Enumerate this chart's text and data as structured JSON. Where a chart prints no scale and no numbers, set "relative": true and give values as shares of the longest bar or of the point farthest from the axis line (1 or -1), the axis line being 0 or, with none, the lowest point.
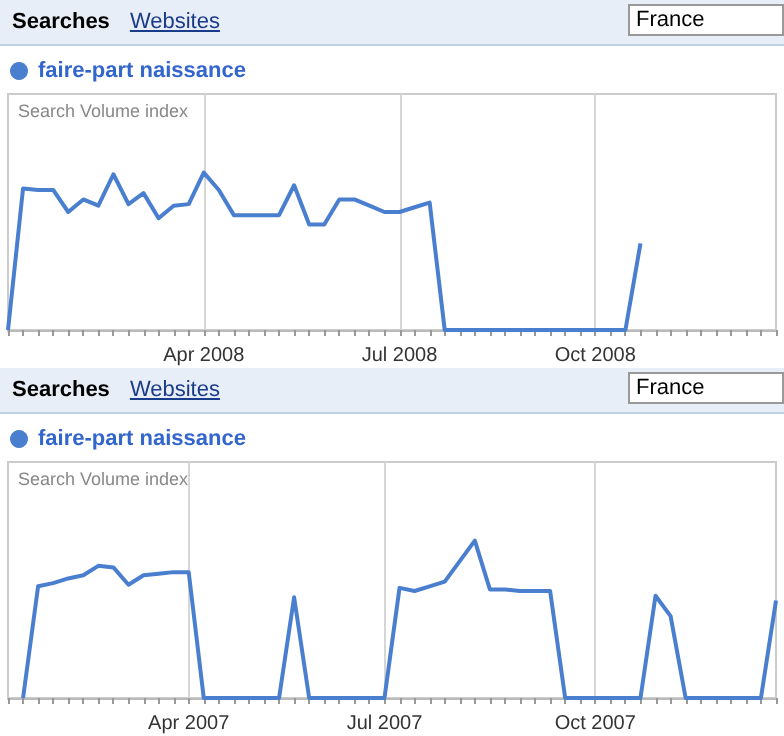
{
  "chart_data": [
    {
      "type": "line",
      "relative": true,
      "ylabel": "Search Volume index",
      "annotations": [
        "Searches",
        "Websites",
        "France"
      ],
      "categories": [
        null,
        null,
        null,
        null,
        null,
        null,
        null,
        null,
        null,
        null,
        null,
        null,
        null,
        "Apr 2008",
        null,
        null,
        null,
        null,
        null,
        null,
        null,
        null,
        null,
        null,
        null,
        null,
        "Jul 2008",
        null,
        null,
        null,
        null,
        null,
        null,
        null,
        null,
        null,
        null,
        null,
        null,
        "Oct 2008",
        null,
        null,
        null,
        null,
        null,
        null,
        null,
        null,
        null,
        null,
        null,
        null
      ],
      "series": [
        {
          "name": "faire-part naissance",
          "color": "#4a7fd0",
          "values": [
            0,
            0.9,
            0.89,
            0.89,
            0.75,
            0.83,
            0.79,
            0.99,
            0.8,
            0.87,
            0.71,
            0.79,
            0.8,
            1,
            0.89,
            0.73,
            0.73,
            0.73,
            0.73,
            0.92,
            0.67,
            0.67,
            0.83,
            0.83,
            0.79,
            0.75,
            0.75,
            0.78,
            0.81,
            0,
            0,
            0,
            0,
            0,
            0,
            0,
            0,
            0,
            0,
            0,
            0,
            0,
            0.55,
            null,
            null,
            null,
            null,
            null,
            null,
            null,
            null,
            null
          ]
        }
      ],
      "grid": "x",
      "legend": "top left",
      "marker": "none",
      "line_style": "solid"
    },
    {
      "type": "line",
      "relative": true,
      "ylabel": "Search Volume index",
      "annotations": [
        "Searches",
        "Websites",
        "France"
      ],
      "categories": [
        null,
        null,
        null,
        null,
        null,
        null,
        null,
        null,
        null,
        null,
        null,
        null,
        "Apr 2007",
        null,
        null,
        null,
        null,
        null,
        null,
        null,
        null,
        null,
        null,
        null,
        null,
        "Jul 2007",
        null,
        null,
        null,
        null,
        null,
        null,
        null,
        null,
        null,
        null,
        null,
        null,
        null,
        "Oct 2007",
        null,
        null,
        null,
        null,
        null,
        null,
        null,
        null,
        null,
        null,
        null,
        null
      ],
      "series": [
        {
          "name": "faire-part naissance",
          "color": "#4a7fd0",
          "values": [
            null,
            0,
            0.71,
            0.73,
            0.76,
            0.78,
            0.84,
            0.83,
            0.72,
            0.78,
            0.79,
            0.8,
            0.8,
            0,
            0,
            0,
            0,
            0,
            0,
            0.64,
            0,
            0,
            0,
            0,
            0,
            0,
            0.7,
            0.68,
            0.71,
            0.74,
            0.87,
            1,
            0.69,
            0.69,
            0.68,
            0.68,
            0.68,
            0,
            0,
            0,
            0,
            0,
            0,
            0.65,
            0.52,
            0,
            0,
            0,
            0,
            0,
            0,
            0.62
          ]
        }
      ],
      "grid": "x",
      "legend": "top left",
      "marker": "none",
      "line_style": "solid"
    }
  ]
}
